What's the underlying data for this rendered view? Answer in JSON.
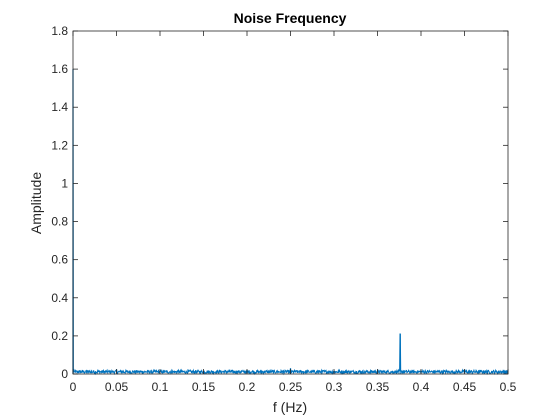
{
  "chart_data": {
    "type": "line",
    "title": "Noise Frequency",
    "xlabel": "f (Hz)",
    "ylabel": "Amplitude",
    "xlim": [
      0,
      0.5
    ],
    "ylim": [
      0,
      1.8
    ],
    "xticks": [
      "0",
      "0.05",
      "0.1",
      "0.15",
      "0.2",
      "0.25",
      "0.3",
      "0.35",
      "0.4",
      "0.45",
      "0.5"
    ],
    "yticks": [
      "0",
      "0.2",
      "0.4",
      "0.6",
      "0.8",
      "1",
      "1.2",
      "1.4",
      "1.6",
      "1.8"
    ],
    "grid": false,
    "series": [
      {
        "color": "#0072bd",
        "noise_floor": 0.02,
        "peaks": [
          {
            "x": 0.0,
            "y": 1.6
          },
          {
            "x": 0.25,
            "y": 0.03
          },
          {
            "x": 0.376,
            "y": 0.21
          }
        ]
      }
    ]
  }
}
